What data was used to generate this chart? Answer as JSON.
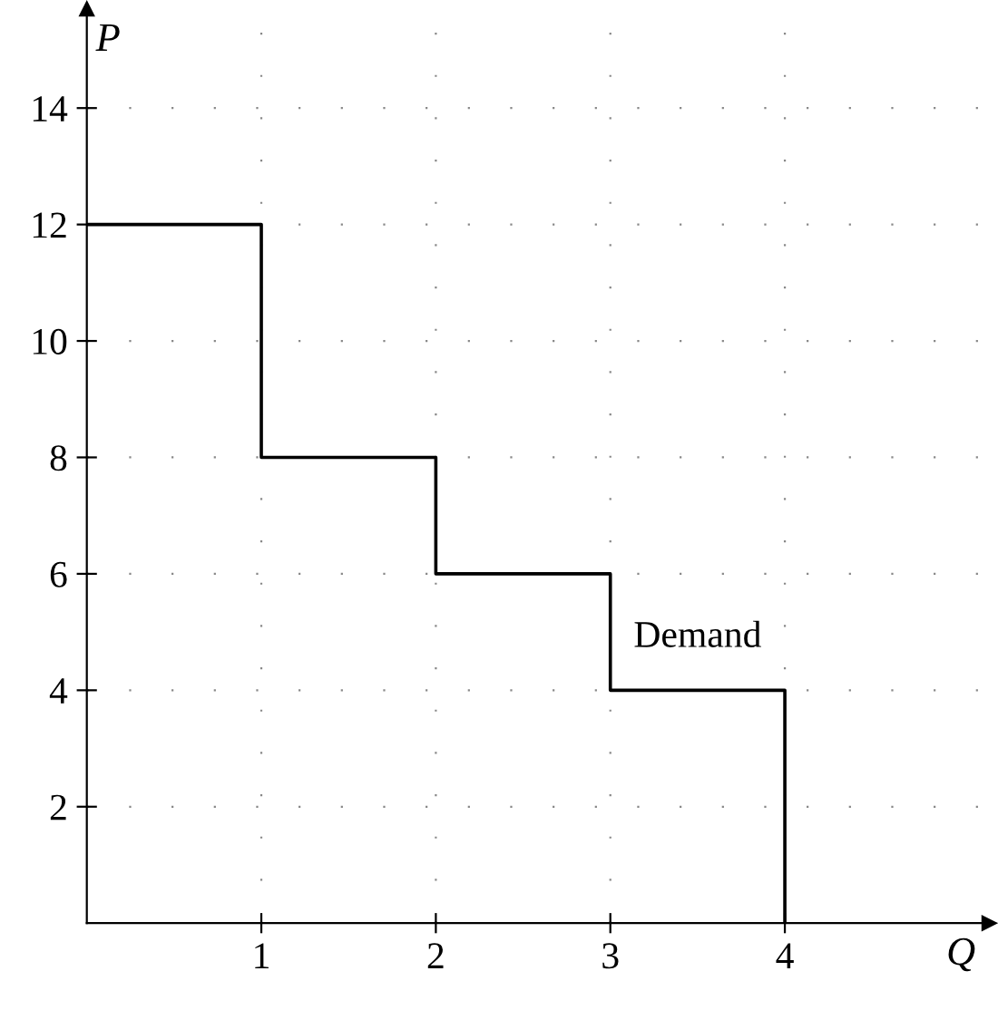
{
  "chart_data": {
    "type": "step",
    "xlabel": "Q",
    "ylabel": "P",
    "x": [
      0,
      1,
      2,
      3,
      4
    ],
    "values": [
      12,
      8,
      6,
      4,
      0
    ],
    "color": "#000000",
    "xlim": [
      0,
      5.17
    ],
    "ylim": [
      0,
      15.7
    ],
    "xticks": [
      1,
      2,
      3,
      4
    ],
    "yticks": [
      2,
      4,
      6,
      8,
      10,
      12,
      14
    ],
    "grid": true,
    "line_style": "solid",
    "annotations": [
      {
        "text": "Demand",
        "x": 3.5,
        "y": 4
      }
    ]
  }
}
